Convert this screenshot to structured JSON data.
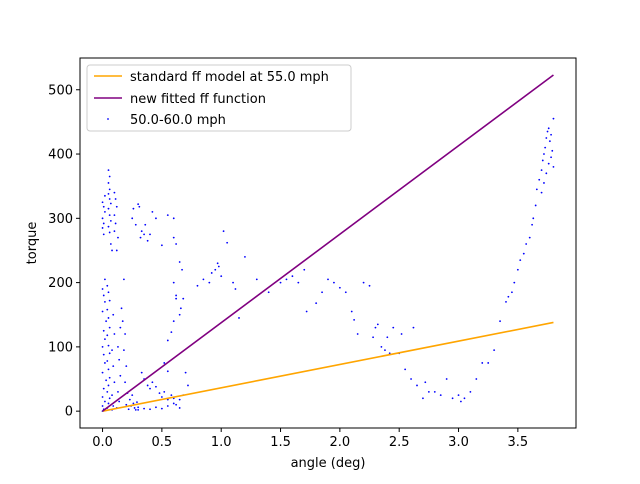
{
  "chart_data": {
    "type": "scatter",
    "title": "",
    "xlabel": "angle (deg)",
    "ylabel": "torque",
    "xlim": [
      -0.19,
      3.99
    ],
    "ylim": [
      -26.2,
      549.4
    ],
    "xticks": [
      "0.0",
      "0.5",
      "1.0",
      "1.5",
      "2.0",
      "2.5",
      "3.0",
      "3.5"
    ],
    "xtick_values": [
      0.0,
      0.5,
      1.0,
      1.5,
      2.0,
      2.5,
      3.0,
      3.5
    ],
    "yticks": [
      "0",
      "100",
      "200",
      "300",
      "400",
      "500"
    ],
    "ytick_values": [
      0,
      100,
      200,
      300,
      400,
      500
    ],
    "grid": false,
    "legend_position": "upper left",
    "colors": {
      "standard": "#ffa500",
      "fitted": "#800080",
      "scatter": "#0000ff"
    },
    "lines": [
      {
        "name": "standard ff model at 55.0 mph",
        "color": "#ffa500",
        "x": [
          0.0,
          3.8
        ],
        "y": [
          0,
          138
        ]
      },
      {
        "name": "new fitted ff function",
        "color": "#800080",
        "x": [
          0.0,
          3.8
        ],
        "y": [
          0,
          523
        ]
      }
    ],
    "scatter": {
      "name": "50.0-60.0 mph",
      "color": "#0000ff",
      "points": [
        [
          0.0,
          0
        ],
        [
          0.01,
          3
        ],
        [
          0.0,
          8
        ],
        [
          0.02,
          15
        ],
        [
          0.0,
          22
        ],
        [
          0.01,
          35
        ],
        [
          0.03,
          48
        ],
        [
          0.0,
          60
        ],
        [
          0.02,
          75
        ],
        [
          0.01,
          88
        ],
        [
          0.0,
          100
        ],
        [
          0.02,
          112
        ],
        [
          0.01,
          125
        ],
        [
          0.03,
          140
        ],
        [
          0.0,
          155
        ],
        [
          0.02,
          170
        ],
        [
          0.01,
          180
        ],
        [
          0.0,
          190
        ],
        [
          0.02,
          205
        ],
        [
          0.0,
          285
        ],
        [
          0.01,
          292
        ],
        [
          0.0,
          300
        ],
        [
          0.02,
          310
        ],
        [
          0.01,
          318
        ],
        [
          0.0,
          325
        ],
        [
          0.02,
          335
        ],
        [
          0.01,
          275
        ],
        [
          0.04,
          5
        ],
        [
          0.05,
          12
        ],
        [
          0.06,
          20
        ],
        [
          0.04,
          30
        ],
        [
          0.05,
          40
        ],
        [
          0.06,
          52
        ],
        [
          0.05,
          65
        ],
        [
          0.04,
          78
        ],
        [
          0.06,
          90
        ],
        [
          0.05,
          102
        ],
        [
          0.04,
          118
        ],
        [
          0.06,
          130
        ],
        [
          0.05,
          145
        ],
        [
          0.04,
          158
        ],
        [
          0.06,
          172
        ],
        [
          0.05,
          185
        ],
        [
          0.04,
          195
        ],
        [
          0.06,
          278
        ],
        [
          0.05,
          287
        ],
        [
          0.07,
          296
        ],
        [
          0.06,
          305
        ],
        [
          0.05,
          315
        ],
        [
          0.07,
          323
        ],
        [
          0.06,
          330
        ],
        [
          0.05,
          338
        ],
        [
          0.06,
          345
        ],
        [
          0.05,
          355
        ],
        [
          0.06,
          365
        ],
        [
          0.05,
          375
        ],
        [
          0.07,
          260
        ],
        [
          0.08,
          250
        ],
        [
          0.08,
          2
        ],
        [
          0.09,
          8
        ],
        [
          0.08,
          25
        ],
        [
          0.1,
          45
        ],
        [
          0.09,
          70
        ],
        [
          0.08,
          95
        ],
        [
          0.1,
          120
        ],
        [
          0.09,
          150
        ],
        [
          0.1,
          280
        ],
        [
          0.11,
          292
        ],
        [
          0.1,
          305
        ],
        [
          0.12,
          318
        ],
        [
          0.11,
          330
        ],
        [
          0.1,
          340
        ],
        [
          0.12,
          250
        ],
        [
          0.13,
          270
        ],
        [
          0.12,
          5
        ],
        [
          0.14,
          15
        ],
        [
          0.13,
          30
        ],
        [
          0.15,
          55
        ],
        [
          0.14,
          80
        ],
        [
          0.13,
          100
        ],
        [
          0.15,
          130
        ],
        [
          0.16,
          160
        ],
        [
          0.18,
          205
        ],
        [
          0.17,
          140
        ],
        [
          0.19,
          120
        ],
        [
          0.18,
          95
        ],
        [
          0.2,
          70
        ],
        [
          0.19,
          45
        ],
        [
          0.21,
          28
        ],
        [
          0.2,
          10
        ],
        [
          0.22,
          3
        ],
        [
          0.24,
          8
        ],
        [
          0.23,
          18
        ],
        [
          0.25,
          25
        ],
        [
          0.27,
          5
        ],
        [
          0.26,
          12
        ],
        [
          0.28,
          2
        ],
        [
          0.3,
          6
        ],
        [
          0.29,
          14
        ],
        [
          0.25,
          300
        ],
        [
          0.26,
          315
        ],
        [
          0.28,
          290
        ],
        [
          0.3,
          322
        ],
        [
          0.31,
          318
        ],
        [
          0.33,
          280
        ],
        [
          0.32,
          270
        ],
        [
          0.35,
          275
        ],
        [
          0.36,
          290
        ],
        [
          0.38,
          265
        ],
        [
          0.4,
          275
        ],
        [
          0.42,
          310
        ],
        [
          0.45,
          300
        ],
        [
          0.5,
          258
        ],
        [
          0.33,
          60
        ],
        [
          0.35,
          50
        ],
        [
          0.38,
          40
        ],
        [
          0.4,
          35
        ],
        [
          0.42,
          45
        ],
        [
          0.45,
          38
        ],
        [
          0.48,
          28
        ],
        [
          0.5,
          22
        ],
        [
          0.52,
          30
        ],
        [
          0.55,
          18
        ],
        [
          0.58,
          25
        ],
        [
          0.6,
          20
        ],
        [
          0.62,
          10
        ],
        [
          0.65,
          5
        ],
        [
          0.55,
          62
        ],
        [
          0.52,
          75
        ],
        [
          0.55,
          110
        ],
        [
          0.58,
          123
        ],
        [
          0.6,
          140
        ],
        [
          0.62,
          180
        ],
        [
          0.6,
          200
        ],
        [
          0.62,
          175
        ],
        [
          0.55,
          305
        ],
        [
          0.6,
          300
        ],
        [
          0.6,
          270
        ],
        [
          0.62,
          260
        ],
        [
          0.65,
          232
        ],
        [
          0.67,
          220
        ],
        [
          0.68,
          175
        ],
        [
          0.66,
          160
        ],
        [
          0.65,
          150
        ],
        [
          0.3,
          2
        ],
        [
          0.35,
          4
        ],
        [
          0.4,
          3
        ],
        [
          0.45,
          6
        ],
        [
          0.5,
          4
        ],
        [
          0.55,
          8
        ],
        [
          0.6,
          12
        ],
        [
          0.65,
          18
        ],
        [
          0.68,
          25
        ],
        [
          0.72,
          40
        ],
        [
          0.7,
          60
        ],
        [
          0.8,
          195
        ],
        [
          0.85,
          205
        ],
        [
          0.9,
          200
        ],
        [
          0.92,
          215
        ],
        [
          0.95,
          220
        ],
        [
          0.97,
          230
        ],
        [
          0.98,
          225
        ],
        [
          1.0,
          210
        ],
        [
          1.02,
          280
        ],
        [
          1.05,
          262
        ],
        [
          1.1,
          200
        ],
        [
          1.12,
          190
        ],
        [
          1.15,
          145
        ],
        [
          1.2,
          240
        ],
        [
          1.3,
          205
        ],
        [
          1.4,
          185
        ],
        [
          1.5,
          200
        ],
        [
          1.55,
          205
        ],
        [
          1.6,
          210
        ],
        [
          1.65,
          200
        ],
        [
          1.7,
          220
        ],
        [
          1.72,
          155
        ],
        [
          1.8,
          168
        ],
        [
          1.85,
          185
        ],
        [
          1.9,
          205
        ],
        [
          1.95,
          200
        ],
        [
          2.0,
          192
        ],
        [
          2.05,
          185
        ],
        [
          2.1,
          155
        ],
        [
          2.12,
          142
        ],
        [
          2.15,
          120
        ],
        [
          2.2,
          200
        ],
        [
          2.25,
          195
        ],
        [
          2.28,
          115
        ],
        [
          2.3,
          130
        ],
        [
          2.32,
          135
        ],
        [
          2.35,
          100
        ],
        [
          2.38,
          95
        ],
        [
          2.4,
          115
        ],
        [
          2.42,
          90
        ],
        [
          2.45,
          130
        ],
        [
          2.5,
          90
        ],
        [
          2.52,
          120
        ],
        [
          2.55,
          65
        ],
        [
          2.6,
          50
        ],
        [
          2.62,
          130
        ],
        [
          2.65,
          40
        ],
        [
          2.7,
          20
        ],
        [
          2.72,
          45
        ],
        [
          2.75,
          30
        ],
        [
          2.8,
          30
        ],
        [
          2.85,
          25
        ],
        [
          2.9,
          50
        ],
        [
          2.95,
          20
        ],
        [
          3.0,
          25
        ],
        [
          3.02,
          15
        ],
        [
          3.05,
          20
        ],
        [
          3.1,
          30
        ],
        [
          3.15,
          50
        ],
        [
          3.2,
          75
        ],
        [
          3.25,
          75
        ],
        [
          3.3,
          95
        ],
        [
          3.35,
          140
        ],
        [
          3.4,
          170
        ],
        [
          3.42,
          178
        ],
        [
          3.45,
          185
        ],
        [
          3.47,
          200
        ],
        [
          3.5,
          220
        ],
        [
          3.52,
          235
        ],
        [
          3.55,
          245
        ],
        [
          3.57,
          260
        ],
        [
          3.6,
          270
        ],
        [
          3.62,
          290
        ],
        [
          3.63,
          300
        ],
        [
          3.65,
          320
        ],
        [
          3.66,
          345
        ],
        [
          3.68,
          360
        ],
        [
          3.7,
          375
        ],
        [
          3.71,
          390
        ],
        [
          3.72,
          400
        ],
        [
          3.73,
          410
        ],
        [
          3.74,
          425
        ],
        [
          3.75,
          435
        ],
        [
          3.76,
          440
        ],
        [
          3.77,
          420
        ],
        [
          3.78,
          395
        ],
        [
          3.79,
          405
        ],
        [
          3.8,
          380
        ],
        [
          3.78,
          430
        ],
        [
          3.8,
          455
        ],
        [
          3.76,
          385
        ],
        [
          3.74,
          370
        ],
        [
          3.72,
          355
        ],
        [
          3.7,
          340
        ]
      ]
    }
  }
}
